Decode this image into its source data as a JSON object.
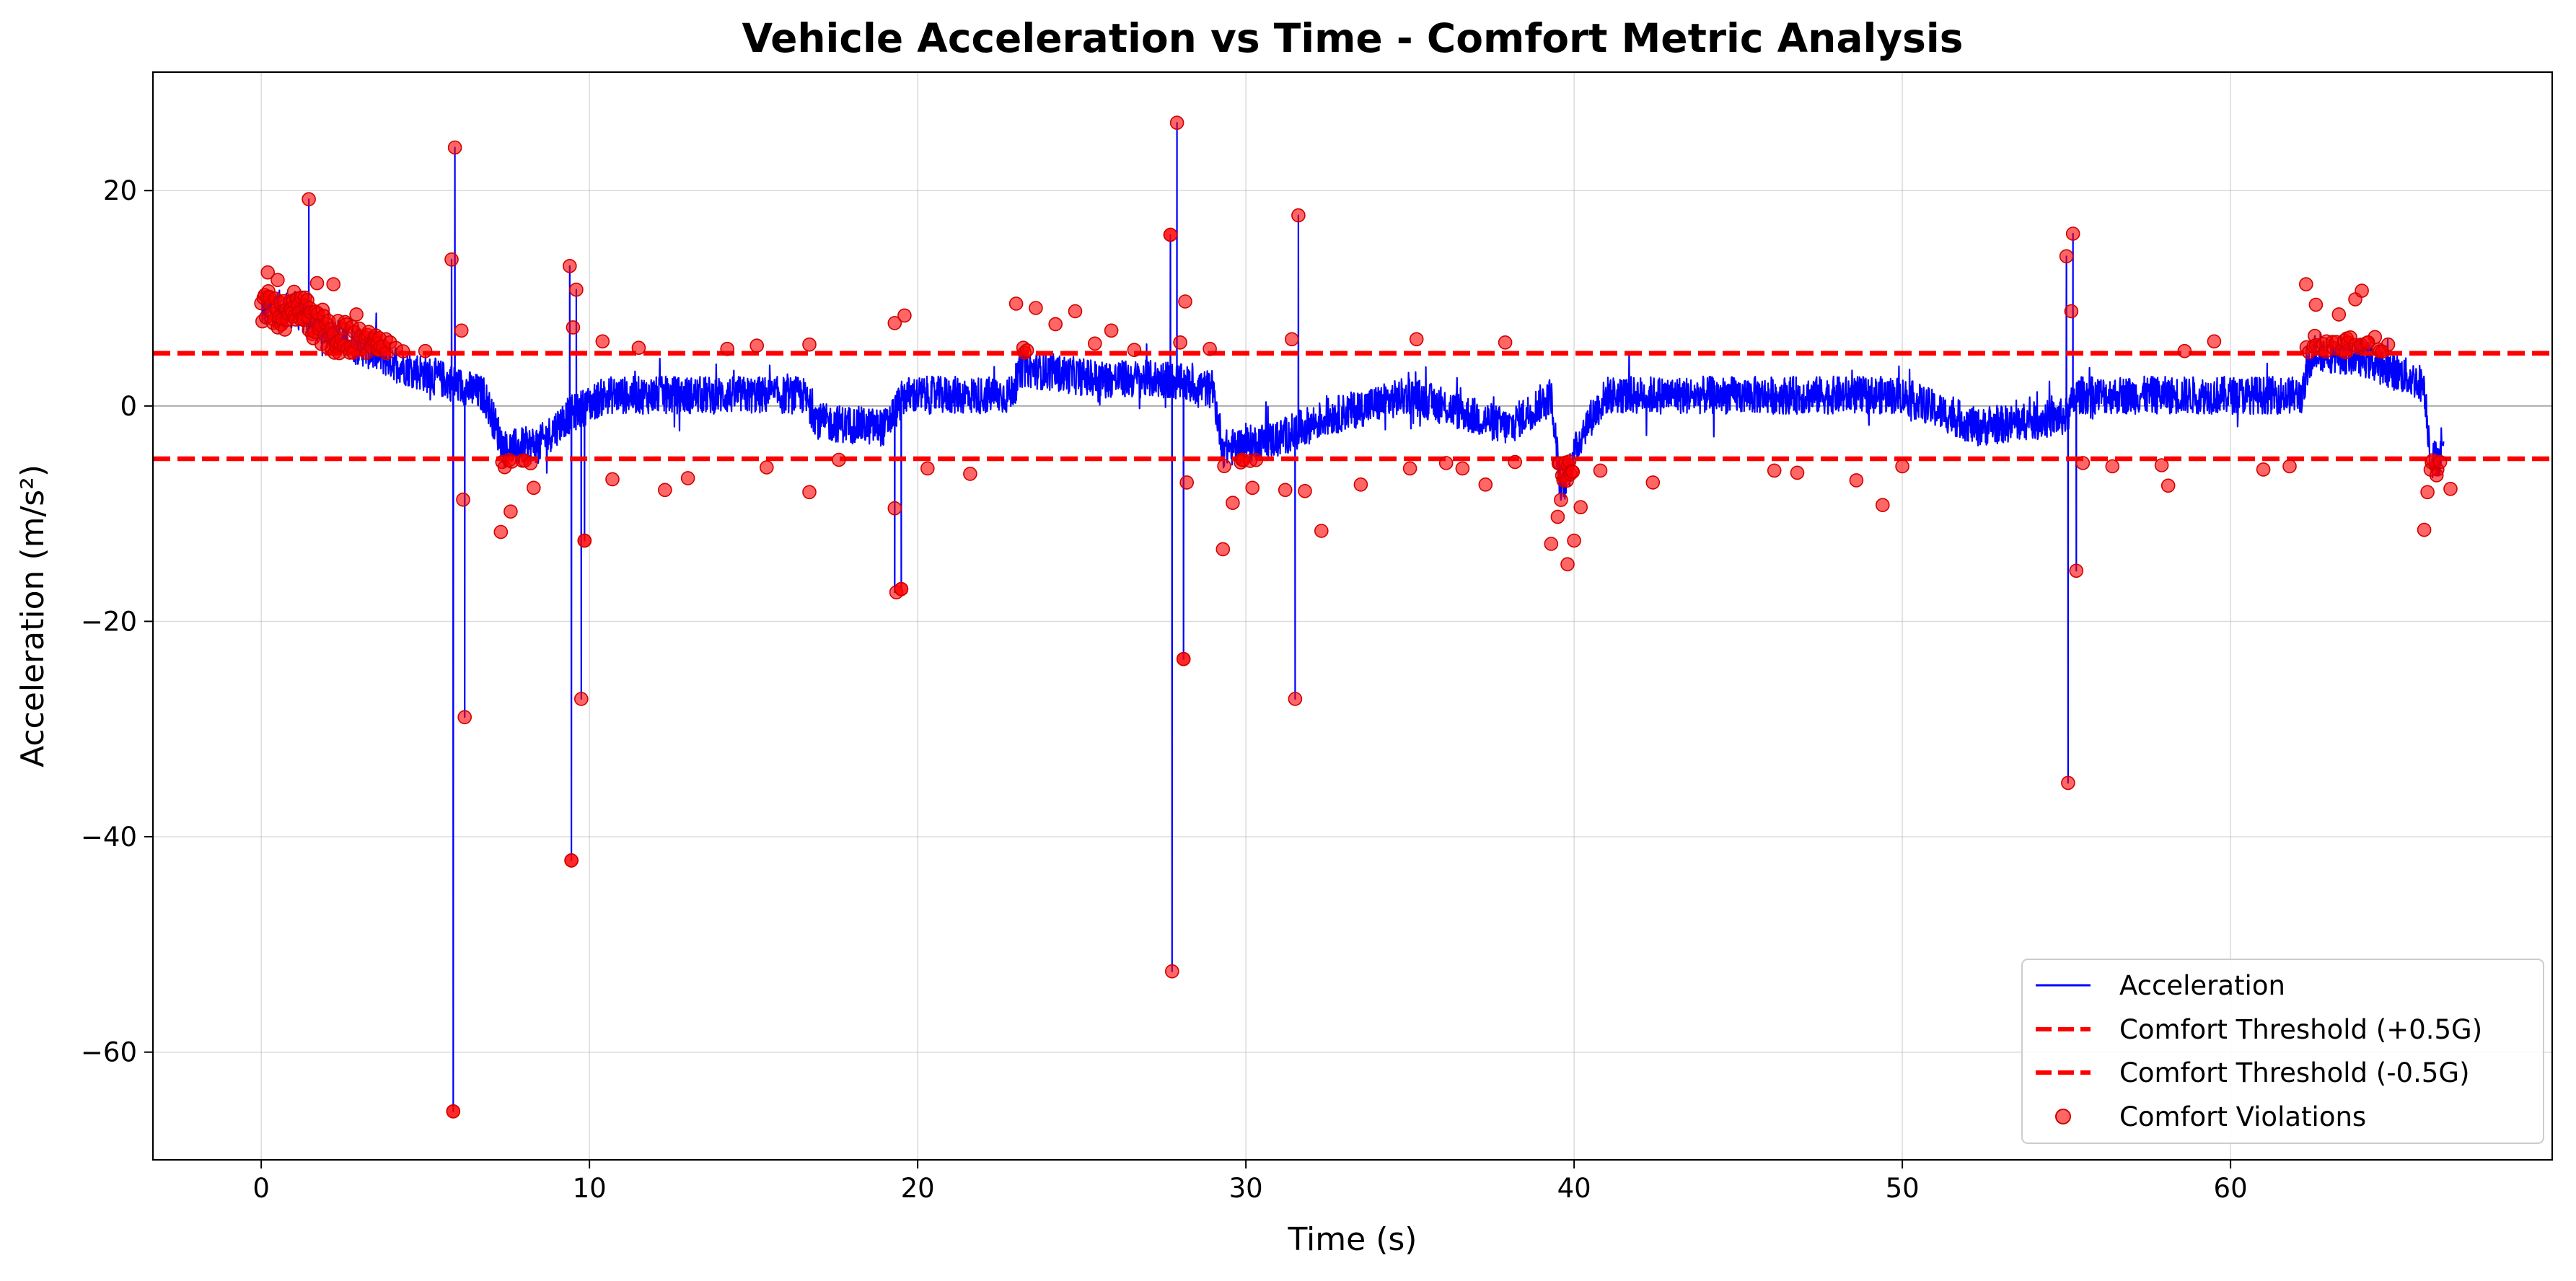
{
  "chart_data": {
    "type": "line",
    "title": "Vehicle Acceleration vs Time - Comfort Metric Analysis",
    "xlabel": "Time (s)",
    "ylabel": "Acceleration (m/s²)",
    "xlim": [
      -3.3,
      69.8
    ],
    "ylim": [
      -70,
      31
    ],
    "x_ticks": [
      0,
      10,
      20,
      30,
      40,
      50,
      60
    ],
    "y_ticks": [
      -60,
      -40,
      -20,
      0,
      20
    ],
    "x_tick_labels": [
      "0",
      "10",
      "20",
      "30",
      "40",
      "50",
      "60"
    ],
    "y_tick_labels": [
      "−60",
      "−40",
      "−20",
      "0",
      "20"
    ],
    "grid": true,
    "zero_line": true,
    "legend_position": "lower-right",
    "colors": {
      "acceleration": "#0000ff",
      "threshold": "#ff0000",
      "violations": "#ff0000",
      "grid": "#b0b0b0"
    },
    "series": [
      {
        "name": "Acceleration",
        "kind": "line",
        "noise_amplitude": 3.5,
        "segments": [
          [
            0.0,
            9.0
          ],
          [
            1.0,
            9.0
          ],
          [
            2.0,
            7.0
          ],
          [
            3.0,
            5.5
          ],
          [
            4.5,
            3.5
          ],
          [
            5.5,
            2.5
          ],
          [
            6.8,
            1.0
          ],
          [
            7.4,
            -4.0
          ],
          [
            8.5,
            -3.5
          ],
          [
            9.3,
            -1.0
          ],
          [
            10.5,
            1.0
          ],
          [
            16.5,
            1.0
          ],
          [
            17.0,
            -1.5
          ],
          [
            19.0,
            -2.0
          ],
          [
            19.6,
            1.0
          ],
          [
            22.8,
            1.0
          ],
          [
            23.2,
            3.5
          ],
          [
            25.5,
            2.5
          ],
          [
            27.5,
            2.5
          ],
          [
            29.0,
            1.5
          ],
          [
            29.3,
            -4.0
          ],
          [
            31.0,
            -3.0
          ],
          [
            32.5,
            -1.0
          ],
          [
            35.0,
            1.0
          ],
          [
            38.0,
            -2.0
          ],
          [
            39.3,
            1.0
          ],
          [
            39.6,
            -8.0
          ],
          [
            40.3,
            -2.0
          ],
          [
            41.0,
            1.0
          ],
          [
            50.0,
            1.0
          ],
          [
            52.3,
            -2.0
          ],
          [
            55.0,
            -1.0
          ],
          [
            55.3,
            1.0
          ],
          [
            62.2,
            1.0
          ],
          [
            62.5,
            5.0
          ],
          [
            64.0,
            4.5
          ],
          [
            65.9,
            2.0
          ],
          [
            66.1,
            -5.0
          ],
          [
            66.5,
            -4.5
          ]
        ],
        "spikes": [
          {
            "x": 1.45,
            "y": 19.2
          },
          {
            "x": 5.8,
            "y": 13.6
          },
          {
            "x": 5.85,
            "y": -65.5
          },
          {
            "x": 5.9,
            "y": 24.0
          },
          {
            "x": 6.2,
            "y": -28.9
          },
          {
            "x": 9.4,
            "y": 13.0
          },
          {
            "x": 9.45,
            "y": -42.2
          },
          {
            "x": 9.6,
            "y": 10.8
          },
          {
            "x": 9.75,
            "y": -27.2
          },
          {
            "x": 9.85,
            "y": -12.5
          },
          {
            "x": 19.3,
            "y": -17.3
          },
          {
            "x": 19.5,
            "y": -17.0
          },
          {
            "x": 27.7,
            "y": 15.9
          },
          {
            "x": 27.75,
            "y": -52.5
          },
          {
            "x": 27.9,
            "y": 26.3
          },
          {
            "x": 28.1,
            "y": -23.5
          },
          {
            "x": 31.5,
            "y": -27.2
          },
          {
            "x": 31.6,
            "y": 17.7
          },
          {
            "x": 55.0,
            "y": 13.9
          },
          {
            "x": 55.05,
            "y": -35.0
          },
          {
            "x": 55.2,
            "y": 16.0
          },
          {
            "x": 55.3,
            "y": -15.3
          }
        ]
      },
      {
        "name": "Comfort Threshold (+0.5G)",
        "kind": "hline",
        "y": 4.9
      },
      {
        "name": "Comfort Threshold (-0.5G)",
        "kind": "hline",
        "y": -4.9
      },
      {
        "name": "Comfort Violations",
        "kind": "scatter",
        "threshold": 4.9,
        "points": [
          {
            "x": 0.2,
            "y": 12.4
          },
          {
            "x": 0.5,
            "y": 11.7
          },
          {
            "x": 1.0,
            "y": 10.6
          },
          {
            "x": 1.45,
            "y": 19.2
          },
          {
            "x": 1.7,
            "y": 11.4
          },
          {
            "x": 2.2,
            "y": 11.3
          },
          {
            "x": 2.9,
            "y": 8.5
          },
          {
            "x": 3.8,
            "y": 6.2
          },
          {
            "x": 5.0,
            "y": 5.1
          },
          {
            "x": 5.8,
            "y": 13.6
          },
          {
            "x": 5.85,
            "y": -65.5
          },
          {
            "x": 5.9,
            "y": 24.0
          },
          {
            "x": 6.1,
            "y": 7.0
          },
          {
            "x": 6.15,
            "y": -8.7
          },
          {
            "x": 6.2,
            "y": -28.9
          },
          {
            "x": 7.3,
            "y": -11.7
          },
          {
            "x": 7.6,
            "y": -9.8
          },
          {
            "x": 8.3,
            "y": -7.6
          },
          {
            "x": 9.4,
            "y": 13.0
          },
          {
            "x": 9.45,
            "y": -42.2
          },
          {
            "x": 9.5,
            "y": 7.3
          },
          {
            "x": 9.6,
            "y": 10.8
          },
          {
            "x": 9.75,
            "y": -27.2
          },
          {
            "x": 9.85,
            "y": -12.5
          },
          {
            "x": 10.4,
            "y": 6.0
          },
          {
            "x": 10.7,
            "y": -6.8
          },
          {
            "x": 11.5,
            "y": 5.4
          },
          {
            "x": 12.3,
            "y": -7.8
          },
          {
            "x": 13.0,
            "y": -6.7
          },
          {
            "x": 14.2,
            "y": 5.3
          },
          {
            "x": 15.1,
            "y": 5.6
          },
          {
            "x": 15.4,
            "y": -5.7
          },
          {
            "x": 16.7,
            "y": 5.7
          },
          {
            "x": 16.7,
            "y": -8.0
          },
          {
            "x": 17.6,
            "y": -5.0
          },
          {
            "x": 19.3,
            "y": 7.7
          },
          {
            "x": 19.3,
            "y": -9.5
          },
          {
            "x": 19.35,
            "y": -17.3
          },
          {
            "x": 19.5,
            "y": -17.0
          },
          {
            "x": 19.6,
            "y": 8.4
          },
          {
            "x": 20.3,
            "y": -5.8
          },
          {
            "x": 21.6,
            "y": -6.3
          },
          {
            "x": 23.0,
            "y": 9.5
          },
          {
            "x": 23.6,
            "y": 9.1
          },
          {
            "x": 24.2,
            "y": 7.6
          },
          {
            "x": 24.8,
            "y": 8.8
          },
          {
            "x": 25.4,
            "y": 5.8
          },
          {
            "x": 25.9,
            "y": 7.0
          },
          {
            "x": 26.6,
            "y": 5.2
          },
          {
            "x": 27.7,
            "y": 15.9
          },
          {
            "x": 27.75,
            "y": -52.5
          },
          {
            "x": 27.9,
            "y": 26.3
          },
          {
            "x": 28.0,
            "y": 5.9
          },
          {
            "x": 28.1,
            "y": -23.5
          },
          {
            "x": 28.15,
            "y": 9.7
          },
          {
            "x": 28.2,
            "y": -7.1
          },
          {
            "x": 28.9,
            "y": 5.3
          },
          {
            "x": 29.3,
            "y": -13.3
          },
          {
            "x": 29.6,
            "y": -9.0
          },
          {
            "x": 30.2,
            "y": -7.6
          },
          {
            "x": 31.2,
            "y": -7.8
          },
          {
            "x": 31.4,
            "y": 6.2
          },
          {
            "x": 31.5,
            "y": -27.2
          },
          {
            "x": 31.6,
            "y": 17.7
          },
          {
            "x": 31.8,
            "y": -7.9
          },
          {
            "x": 32.3,
            "y": -11.6
          },
          {
            "x": 33.5,
            "y": -7.3
          },
          {
            "x": 35.0,
            "y": -5.8
          },
          {
            "x": 35.2,
            "y": 6.2
          },
          {
            "x": 36.1,
            "y": -5.3
          },
          {
            "x": 36.6,
            "y": -5.8
          },
          {
            "x": 37.3,
            "y": -7.3
          },
          {
            "x": 37.9,
            "y": 5.9
          },
          {
            "x": 38.2,
            "y": -5.2
          },
          {
            "x": 39.3,
            "y": -12.8
          },
          {
            "x": 39.5,
            "y": -10.3
          },
          {
            "x": 39.8,
            "y": -14.7
          },
          {
            "x": 40.0,
            "y": -12.5
          },
          {
            "x": 40.2,
            "y": -9.4
          },
          {
            "x": 40.8,
            "y": -6.0
          },
          {
            "x": 42.4,
            "y": -7.1
          },
          {
            "x": 46.1,
            "y": -6.0
          },
          {
            "x": 46.8,
            "y": -6.2
          },
          {
            "x": 48.6,
            "y": -6.9
          },
          {
            "x": 49.4,
            "y": -9.2
          },
          {
            "x": 50.0,
            "y": -5.6
          },
          {
            "x": 55.0,
            "y": 13.9
          },
          {
            "x": 55.05,
            "y": -35.0
          },
          {
            "x": 55.15,
            "y": 8.8
          },
          {
            "x": 55.2,
            "y": 16.0
          },
          {
            "x": 55.3,
            "y": -15.3
          },
          {
            "x": 55.5,
            "y": -5.3
          },
          {
            "x": 56.4,
            "y": -5.6
          },
          {
            "x": 57.9,
            "y": -5.5
          },
          {
            "x": 58.1,
            "y": -7.4
          },
          {
            "x": 58.6,
            "y": 5.1
          },
          {
            "x": 59.5,
            "y": 6.0
          },
          {
            "x": 61.0,
            "y": -5.9
          },
          {
            "x": 61.8,
            "y": -5.6
          },
          {
            "x": 62.3,
            "y": 11.3
          },
          {
            "x": 62.6,
            "y": 9.4
          },
          {
            "x": 63.3,
            "y": 8.5
          },
          {
            "x": 63.8,
            "y": 9.9
          },
          {
            "x": 64.0,
            "y": 10.7
          },
          {
            "x": 64.4,
            "y": 6.4
          },
          {
            "x": 64.8,
            "y": 5.7
          },
          {
            "x": 65.9,
            "y": -11.5
          },
          {
            "x": 66.0,
            "y": -8.0
          },
          {
            "x": 66.3,
            "y": -5.9
          },
          {
            "x": 66.7,
            "y": -7.7
          }
        ]
      }
    ]
  }
}
